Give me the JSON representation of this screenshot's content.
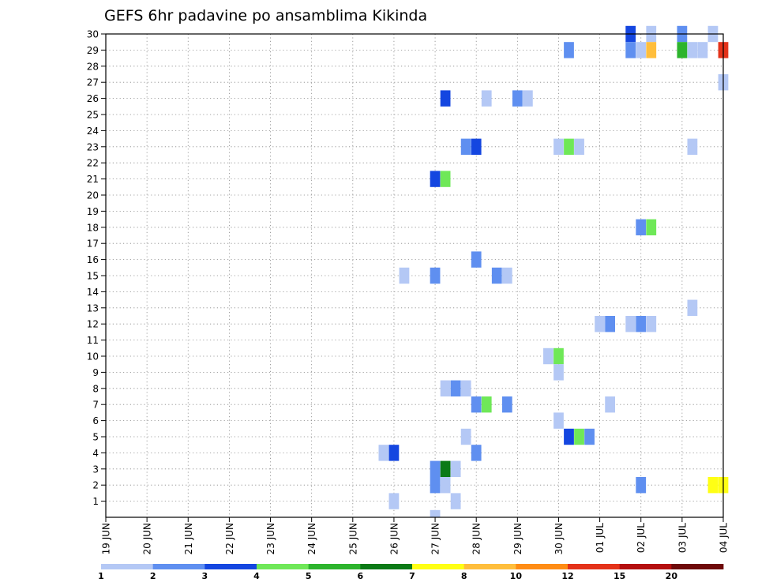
{
  "chart_data": {
    "type": "heatmap",
    "title": "GEFS 6hr padavine po ansamblima Kikinda",
    "xlabel": "",
    "ylabel": "",
    "y_ticks": [
      1,
      2,
      3,
      4,
      5,
      6,
      7,
      8,
      9,
      10,
      11,
      12,
      13,
      14,
      15,
      16,
      17,
      18,
      19,
      20,
      21,
      22,
      23,
      24,
      25,
      26,
      27,
      28,
      29,
      30
    ],
    "y_range": [
      0,
      30
    ],
    "x_ticks": [
      "19 JUN",
      "20 JUN",
      "21 JUN",
      "22 JUN",
      "23 JUN",
      "24 JUN",
      "25 JUN",
      "26 JUN",
      "27 JUN",
      "28 JUN",
      "29 JUN",
      "30 JUN",
      "01 JUL",
      "02 JUL",
      "03 JUL",
      "04 JUL"
    ],
    "x_range_steps": [
      0,
      60
    ],
    "x_unit": "6-hour step from 19 JUN 00Z",
    "grid": true,
    "colorbar": {
      "labels": [
        "1",
        "2",
        "3",
        "4",
        "5",
        "6",
        "7",
        "8",
        "10",
        "12",
        "15",
        "20"
      ],
      "colors": [
        "#b4c8f5",
        "#5f8ff0",
        "#1446e0",
        "#6fe858",
        "#2db42d",
        "#0b7a16",
        "#ffff14",
        "#ffbe3c",
        "#ff8c14",
        "#e43219",
        "#b40f0f",
        "#6e0a0a"
      ],
      "position": "bottom"
    },
    "cells": [
      {
        "member": 30,
        "step": 51,
        "value": 3
      },
      {
        "member": 30,
        "step": 53,
        "value": 1
      },
      {
        "member": 30,
        "step": 56,
        "value": 2
      },
      {
        "member": 30,
        "step": 59,
        "value": 1
      },
      {
        "member": 29,
        "step": 45,
        "value": 2
      },
      {
        "member": 29,
        "step": 51,
        "value": 2
      },
      {
        "member": 29,
        "step": 52,
        "value": 1
      },
      {
        "member": 29,
        "step": 53,
        "value": 8
      },
      {
        "member": 29,
        "step": 56,
        "value": 5
      },
      {
        "member": 29,
        "step": 57,
        "value": 1
      },
      {
        "member": 29,
        "step": 58,
        "value": 1
      },
      {
        "member": 29,
        "step": 60,
        "value": 10
      },
      {
        "member": 27,
        "step": 60,
        "value": 1
      },
      {
        "member": 26,
        "step": 33,
        "value": 3
      },
      {
        "member": 26,
        "step": 37,
        "value": 1
      },
      {
        "member": 26,
        "step": 40,
        "value": 2
      },
      {
        "member": 26,
        "step": 41,
        "value": 1
      },
      {
        "member": 23,
        "step": 35,
        "value": 2
      },
      {
        "member": 23,
        "step": 36,
        "value": 3
      },
      {
        "member": 23,
        "step": 44,
        "value": 1
      },
      {
        "member": 23,
        "step": 45,
        "value": 4
      },
      {
        "member": 23,
        "step": 46,
        "value": 1
      },
      {
        "member": 23,
        "step": 57,
        "value": 1
      },
      {
        "member": 21,
        "step": 32,
        "value": 3
      },
      {
        "member": 21,
        "step": 33,
        "value": 4
      },
      {
        "member": 18,
        "step": 52,
        "value": 2
      },
      {
        "member": 18,
        "step": 53,
        "value": 4
      },
      {
        "member": 16,
        "step": 36,
        "value": 2
      },
      {
        "member": 15,
        "step": 29,
        "value": 1
      },
      {
        "member": 15,
        "step": 32,
        "value": 2
      },
      {
        "member": 15,
        "step": 38,
        "value": 2
      },
      {
        "member": 15,
        "step": 39,
        "value": 1
      },
      {
        "member": 13,
        "step": 57,
        "value": 1
      },
      {
        "member": 12,
        "step": 48,
        "value": 1
      },
      {
        "member": 12,
        "step": 49,
        "value": 2
      },
      {
        "member": 12,
        "step": 51,
        "value": 1
      },
      {
        "member": 12,
        "step": 52,
        "value": 2
      },
      {
        "member": 12,
        "step": 53,
        "value": 1
      },
      {
        "member": 10,
        "step": 43,
        "value": 1
      },
      {
        "member": 10,
        "step": 44,
        "value": 4
      },
      {
        "member": 9,
        "step": 44,
        "value": 1
      },
      {
        "member": 8,
        "step": 33,
        "value": 1
      },
      {
        "member": 8,
        "step": 34,
        "value": 2
      },
      {
        "member": 8,
        "step": 35,
        "value": 1
      },
      {
        "member": 7,
        "step": 36,
        "value": 2
      },
      {
        "member": 7,
        "step": 37,
        "value": 4
      },
      {
        "member": 7,
        "step": 39,
        "value": 2
      },
      {
        "member": 7,
        "step": 49,
        "value": 1
      },
      {
        "member": 6,
        "step": 44,
        "value": 1
      },
      {
        "member": 5,
        "step": 35,
        "value": 1
      },
      {
        "member": 5,
        "step": 45,
        "value": 3
      },
      {
        "member": 5,
        "step": 46,
        "value": 4
      },
      {
        "member": 5,
        "step": 47,
        "value": 2
      },
      {
        "member": 4,
        "step": 27,
        "value": 1
      },
      {
        "member": 4,
        "step": 28,
        "value": 3
      },
      {
        "member": 4,
        "step": 36,
        "value": 2
      },
      {
        "member": 3,
        "step": 32,
        "value": 2
      },
      {
        "member": 3,
        "step": 33,
        "value": 6
      },
      {
        "member": 3,
        "step": 34,
        "value": 1
      },
      {
        "member": 2,
        "step": 32,
        "value": 2
      },
      {
        "member": 2,
        "step": 33,
        "value": 1
      },
      {
        "member": 2,
        "step": 52,
        "value": 2
      },
      {
        "member": 2,
        "step": 59,
        "value": 7
      },
      {
        "member": 2,
        "step": 60,
        "value": 7
      },
      {
        "member": 1,
        "step": 28,
        "value": 1
      },
      {
        "member": 1,
        "step": 34,
        "value": 1
      },
      {
        "member": 0,
        "step": 32,
        "value": 1
      }
    ]
  }
}
